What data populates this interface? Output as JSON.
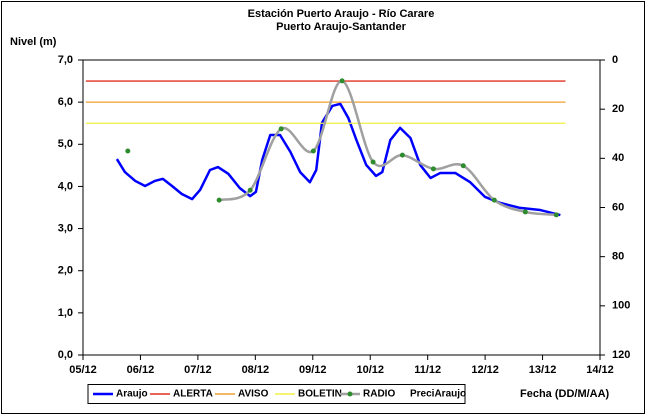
{
  "chart_data": {
    "type": "line",
    "title": "Estación Puerto Araujo - Río Carare",
    "subtitle": "Puerto Araujo-Santander",
    "y_label": "Nivel (m)",
    "x_label": "Fecha (DD/M/AA)",
    "xlim": [
      5,
      14
    ],
    "xticks": [
      {
        "value": 5,
        "label": "05/12"
      },
      {
        "value": 6,
        "label": "06/12"
      },
      {
        "value": 7,
        "label": "07/12"
      },
      {
        "value": 8,
        "label": "08/12"
      },
      {
        "value": 9,
        "label": "09/12"
      },
      {
        "value": 10,
        "label": "10/12"
      },
      {
        "value": 11,
        "label": "11/12"
      },
      {
        "value": 12,
        "label": "12/12"
      },
      {
        "value": 13,
        "label": "13/12"
      },
      {
        "value": 14,
        "label": "14/12"
      }
    ],
    "ylim": [
      0,
      7
    ],
    "yticks": [
      {
        "value": 0,
        "label": "0,0"
      },
      {
        "value": 1,
        "label": "1,0"
      },
      {
        "value": 2,
        "label": "2,0"
      },
      {
        "value": 3,
        "label": "3,0"
      },
      {
        "value": 4,
        "label": "4,0"
      },
      {
        "value": 5,
        "label": "5,0"
      },
      {
        "value": 6,
        "label": "6,0"
      },
      {
        "value": 7,
        "label": "7,0"
      }
    ],
    "y2lim": [
      120,
      0
    ],
    "y2ticks": [
      0,
      20,
      40,
      60,
      80,
      100,
      120
    ],
    "grid": false,
    "legend": "bottom",
    "series": [
      {
        "name": "Araujo",
        "color": "#0000ff",
        "x": [
          5.59,
          5.73,
          5.91,
          6.08,
          6.25,
          6.39,
          6.55,
          6.72,
          6.9,
          7.04,
          7.21,
          7.35,
          7.53,
          7.73,
          7.91,
          8.01,
          8.12,
          8.26,
          8.43,
          8.61,
          8.78,
          8.95,
          9.06,
          9.16,
          9.34,
          9.48,
          9.62,
          9.76,
          9.93,
          10.1,
          10.21,
          10.35,
          10.52,
          10.7,
          10.87,
          11.05,
          11.22,
          11.48,
          11.74,
          12.0,
          12.26,
          12.61,
          12.96,
          13.31
        ],
        "values": [
          4.65,
          4.34,
          4.13,
          4.01,
          4.13,
          4.18,
          4.01,
          3.82,
          3.7,
          3.92,
          4.39,
          4.46,
          4.3,
          3.96,
          3.77,
          3.87,
          4.63,
          5.22,
          5.22,
          4.82,
          4.34,
          4.1,
          4.39,
          5.51,
          5.91,
          5.96,
          5.62,
          5.1,
          4.51,
          4.25,
          4.34,
          5.1,
          5.39,
          5.15,
          4.51,
          4.2,
          4.32,
          4.32,
          4.1,
          3.75,
          3.61,
          3.49,
          3.44,
          3.32
        ]
      },
      {
        "name": "ALERTA",
        "color": "#e03020",
        "x": [
          5.05,
          13.4
        ],
        "values": [
          6.5,
          6.5
        ]
      },
      {
        "name": "AVISO",
        "color": "#f0a030",
        "x": [
          5.05,
          13.4
        ],
        "values": [
          6.0,
          6.0
        ]
      },
      {
        "name": "BOLETIN",
        "color": "#f0f040",
        "x": [
          5.05,
          13.4
        ],
        "values": [
          5.5,
          5.5
        ]
      },
      {
        "name": "RADIO",
        "color": "#a0a0a0",
        "marker_color": "#2e8b2e",
        "axis": "y2",
        "x": [
          5.78,
          7.0,
          7.37,
          7.91,
          8.45,
          9.01,
          9.51,
          10.05,
          10.56,
          11.1,
          11.62,
          12.16,
          12.7,
          13.24
        ],
        "values": [
          37,
          null,
          57,
          53,
          28,
          37,
          8.5,
          41.5,
          38.7,
          44.3,
          43,
          57,
          61.8,
          63
        ]
      },
      {
        "name": "PreciAraujo",
        "color": "#2e8b2e",
        "axis": "y2",
        "x": [],
        "values": []
      }
    ]
  }
}
